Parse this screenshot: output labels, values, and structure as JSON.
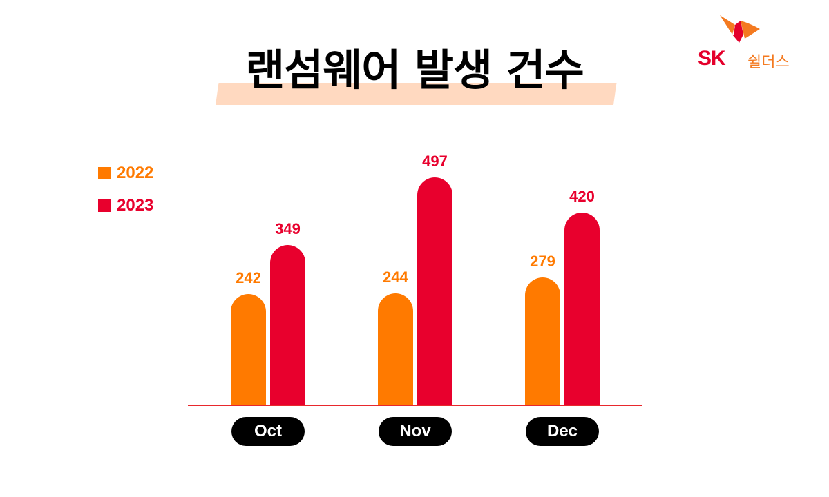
{
  "title": "랜섬웨어 발생 건수",
  "logo": {
    "brand": "SK",
    "subbrand": "쉴더스",
    "brand_color": "#e4002b",
    "accent_color": "#f47a20"
  },
  "colors": {
    "series_2022": "#ff7a00",
    "series_2023": "#e8002d",
    "baseline": "#e8282d",
    "title_highlight": "#ffd9c0",
    "category_pill": "#000000"
  },
  "legend": [
    {
      "label": "2022",
      "color": "#ff7a00"
    },
    {
      "label": "2023",
      "color": "#e8002d"
    }
  ],
  "chart_data": {
    "type": "bar",
    "title": "랜섬웨어 발생 건수",
    "xlabel": "",
    "ylabel": "",
    "categories": [
      "Oct",
      "Nov",
      "Dec"
    ],
    "series": [
      {
        "name": "2022",
        "values": [
          242,
          244,
          279
        ],
        "color": "#ff7a00"
      },
      {
        "name": "2023",
        "values": [
          349,
          497,
          420
        ],
        "color": "#e8002d"
      }
    ],
    "ylim": [
      0,
      497
    ],
    "grid": false,
    "legend_position": "top-left",
    "data_labels": true
  }
}
